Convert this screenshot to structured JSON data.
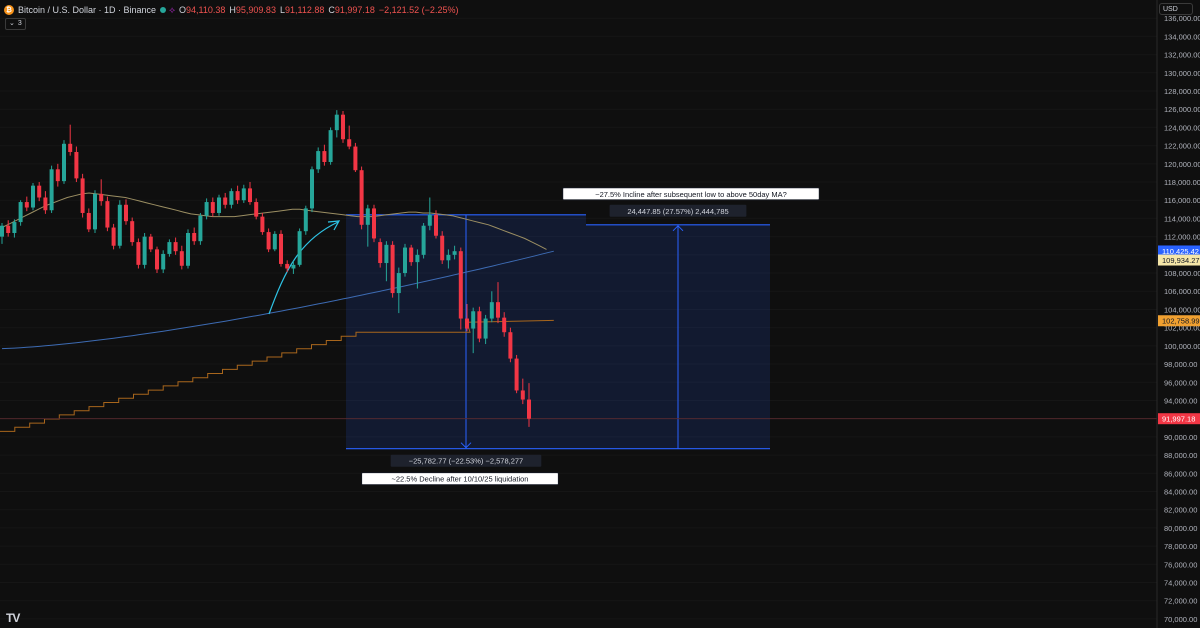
{
  "header": {
    "coin_glyph": "₿",
    "symbol": "Bitcoin / U.S. Dollar · 1D · Binance",
    "open_label": "O",
    "open_value": "94,110.38",
    "high_label": "H",
    "high_value": "95,909.83",
    "low_label": "L",
    "low_value": "91,112.88",
    "close_label": "C",
    "close_value": "91,997.18",
    "change": "−2,121.52 (−2.25%)"
  },
  "indicator_toggle": {
    "chevron": "⌄",
    "count": "3"
  },
  "currency_selector": "USD",
  "logo_text": "TV",
  "colors": {
    "background": "#0f0f0f",
    "up": "#26a69a",
    "down": "#f23645",
    "ma_short": "#9c8f63",
    "ma_long": "#3d6bb3",
    "stair_line": "#a8661c",
    "measure": "#2962ff",
    "price_tag": "#f23645"
  },
  "chart_data": {
    "type": "candlestick",
    "y_axis": {
      "range": [
        69000,
        138000
      ],
      "ticks": [
        "70,000.00",
        "72,000.00",
        "74,000.00",
        "76,000.00",
        "78,000.00",
        "80,000.00",
        "82,000.00",
        "84,000.00",
        "86,000.00",
        "88,000.00",
        "90,000.00",
        "92,000.00",
        "94,000.00",
        "96,000.00",
        "98,000.00",
        "100,000.00",
        "102,000.00",
        "104,000.00",
        "106,000.00",
        "108,000.00",
        "110,000.00",
        "112,000.00",
        "114,000.00",
        "116,000.00",
        "118,000.00",
        "120,000.00",
        "122,000.00",
        "124,000.00",
        "126,000.00",
        "128,000.00",
        "130,000.00",
        "132,000.00",
        "134,000.00",
        "136,000.00"
      ]
    },
    "candles": [
      [
        112000,
        113500,
        111200,
        113200
      ],
      [
        113200,
        113800,
        112000,
        112400
      ],
      [
        112400,
        113900,
        111900,
        113600
      ],
      [
        113600,
        116000,
        113200,
        115800
      ],
      [
        115800,
        116400,
        114800,
        115200
      ],
      [
        115200,
        117900,
        114900,
        117600
      ],
      [
        117600,
        118000,
        115900,
        116300
      ],
      [
        116300,
        117000,
        114500,
        114900
      ],
      [
        114900,
        119800,
        114600,
        119400
      ],
      [
        119400,
        120000,
        117500,
        118100
      ],
      [
        118100,
        122600,
        117800,
        122200
      ],
      [
        122200,
        124300,
        120900,
        121300
      ],
      [
        121300,
        121900,
        118000,
        118400
      ],
      [
        118400,
        118900,
        114100,
        114600
      ],
      [
        114600,
        115100,
        112500,
        112800
      ],
      [
        112800,
        117100,
        112400,
        116700
      ],
      [
        116700,
        118300,
        115400,
        115900
      ],
      [
        115900,
        116400,
        112600,
        113000
      ],
      [
        113000,
        113400,
        110600,
        111000
      ],
      [
        111000,
        116000,
        110700,
        115500
      ],
      [
        115500,
        116100,
        113300,
        113700
      ],
      [
        113700,
        114100,
        111000,
        111400
      ],
      [
        111400,
        111800,
        108500,
        108900
      ],
      [
        108900,
        112400,
        108500,
        112000
      ],
      [
        112000,
        112300,
        110300,
        110600
      ],
      [
        110600,
        110900,
        108000,
        108400
      ],
      [
        108400,
        110500,
        108000,
        110100
      ],
      [
        110100,
        111700,
        109800,
        111400
      ],
      [
        111400,
        111900,
        110000,
        110400
      ],
      [
        110400,
        111000,
        108400,
        108800
      ],
      [
        108800,
        112800,
        108500,
        112400
      ],
      [
        112400,
        113000,
        111100,
        111500
      ],
      [
        111500,
        114600,
        111100,
        114300
      ],
      [
        114300,
        116200,
        113900,
        115800
      ],
      [
        115800,
        116300,
        114200,
        114600
      ],
      [
        114600,
        116600,
        114300,
        116300
      ],
      [
        116300,
        116800,
        115100,
        115500
      ],
      [
        115500,
        117300,
        115100,
        117000
      ],
      [
        117000,
        117600,
        115600,
        116000
      ],
      [
        116000,
        117700,
        115700,
        117300
      ],
      [
        117300,
        118000,
        115500,
        115800
      ],
      [
        115800,
        116200,
        113900,
        114200
      ],
      [
        114200,
        114600,
        112200,
        112500
      ],
      [
        112500,
        112900,
        110300,
        110600
      ],
      [
        110600,
        112600,
        110400,
        112300
      ],
      [
        112300,
        112700,
        108700,
        109000
      ],
      [
        109000,
        109400,
        108100,
        108500
      ],
      [
        108500,
        109300,
        107900,
        108900
      ],
      [
        108900,
        112900,
        108700,
        112600
      ],
      [
        112600,
        115400,
        112200,
        115100
      ],
      [
        115100,
        119700,
        114700,
        119400
      ],
      [
        119400,
        121800,
        119000,
        121400
      ],
      [
        121400,
        122100,
        119800,
        120200
      ],
      [
        120200,
        124000,
        119900,
        123700
      ],
      [
        123700,
        125900,
        122900,
        125400
      ],
      [
        125400,
        125800,
        122300,
        122700
      ],
      [
        122700,
        124200,
        121600,
        121900
      ],
      [
        121900,
        122300,
        119100,
        119300
      ],
      [
        119300,
        119700,
        112800,
        113300
      ],
      [
        113300,
        115500,
        110900,
        115100
      ],
      [
        115100,
        115500,
        111400,
        111800
      ],
      [
        111400,
        111800,
        108600,
        109100
      ],
      [
        109100,
        111500,
        107100,
        111100
      ],
      [
        111100,
        111500,
        105300,
        105800
      ],
      [
        105800,
        108600,
        103600,
        108000
      ],
      [
        108000,
        111200,
        107600,
        110800
      ],
      [
        110800,
        111100,
        108800,
        109200
      ],
      [
        109200,
        110600,
        106300,
        110000
      ],
      [
        110000,
        113500,
        109600,
        113200
      ],
      [
        113200,
        116300,
        112700,
        114400
      ],
      [
        114400,
        114900,
        111800,
        112100
      ],
      [
        112100,
        112600,
        109000,
        109400
      ],
      [
        109400,
        110600,
        108500,
        110000
      ],
      [
        110000,
        111000,
        109500,
        110400
      ],
      [
        110400,
        110800,
        101800,
        103000
      ],
      [
        103000,
        104600,
        101600,
        101900
      ],
      [
        101900,
        104200,
        99200,
        103800
      ],
      [
        103800,
        104300,
        100400,
        100800
      ],
      [
        100800,
        103400,
        100200,
        103000
      ],
      [
        103000,
        106000,
        102600,
        104800
      ],
      [
        104800,
        107000,
        102500,
        103100
      ],
      [
        103100,
        103700,
        101000,
        101500
      ],
      [
        101500,
        102000,
        98200,
        98600
      ],
      [
        98600,
        99000,
        94800,
        95100
      ],
      [
        95100,
        96400,
        93600,
        94100
      ],
      [
        94100,
        95900,
        91100,
        92000
      ]
    ],
    "ma_short": [
      113000,
      113400,
      113800,
      114200,
      114600,
      115000,
      115400,
      115700,
      116000,
      116300,
      116500,
      116700,
      116800,
      116700,
      116600,
      116500,
      116400,
      116300,
      116100,
      115900,
      115700,
      115500,
      115300,
      115100,
      114900,
      114700,
      114500,
      114400,
      114300,
      114200,
      114200,
      114200,
      114200,
      114300,
      114400,
      114500,
      114600,
      114700,
      114800,
      114900,
      115000,
      115000,
      114900,
      114800,
      114700,
      114600,
      114500,
      114400,
      114300,
      114200,
      114200,
      114200,
      114300,
      114400,
      114500,
      114600,
      114700,
      114700,
      114600,
      114600,
      114500,
      114400,
      114300,
      114100,
      113900,
      113700,
      113500,
      113300,
      113000,
      112700,
      112400,
      112100,
      111800,
      111400,
      111000,
      110600
    ],
    "ma_short_x_range": [
      0,
      75
    ],
    "ma_long_start": 99700,
    "ma_long_end": 110400,
    "stair_start": 90600,
    "stair_end": 101500,
    "ma_tail": 102800,
    "labels": {
      "ma_short_price": "110,425.42",
      "ma_mid_price": "109,934.27",
      "stair_price": "102,758.99",
      "last_price": "91,997.18"
    },
    "measure_down": {
      "top": 114400,
      "bottom": 88700,
      "label": "−25,782.77 (−22.53%) −2,578,277",
      "note": "~22.5% Decline after 10/10/25 liquidation"
    },
    "measure_up": {
      "bottom": 88700,
      "top": 113300,
      "label": "24,447.85 (27.57%) 2,444,785",
      "note": "~27.5% Incline after subsequent low to above 50day MA?"
    }
  }
}
